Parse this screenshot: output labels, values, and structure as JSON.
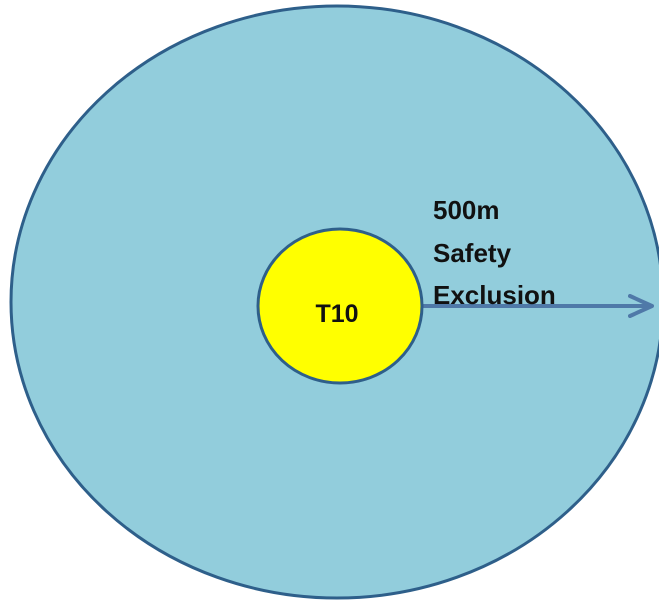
{
  "diagram": {
    "center_label": "T10",
    "zone_label_lines": [
      "500m",
      "Safety",
      "Exclusion"
    ]
  },
  "colors": {
    "zone_fill": "#92CDDC",
    "zone_stroke": "#2E5F8A",
    "center_fill": "#FFFF00",
    "center_stroke": "#2E5F8A",
    "arrow": "#4F79A8",
    "text": "#111111"
  }
}
